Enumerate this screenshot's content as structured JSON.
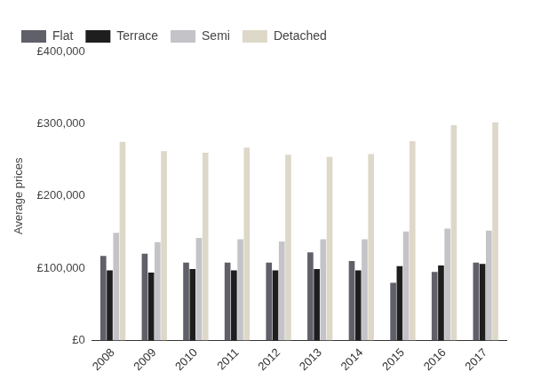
{
  "chart_data": {
    "type": "bar",
    "y_label": "Average prices",
    "categories": [
      "2008",
      "2009",
      "2010",
      "2011",
      "2012",
      "2013",
      "2014",
      "2015",
      "2016",
      "2017"
    ],
    "series": [
      {
        "name": "Flat",
        "color": "#5f6068",
        "values": [
          117000,
          120000,
          108000,
          108000,
          108000,
          122000,
          110000,
          80000,
          95000,
          108000
        ]
      },
      {
        "name": "Terrace",
        "color": "#1e1e1e",
        "values": [
          97000,
          94000,
          99000,
          97000,
          97000,
          99000,
          97000,
          103000,
          104000,
          106000
        ]
      },
      {
        "name": "Semi",
        "color": "#c4c4c8",
        "values": [
          149000,
          136000,
          142000,
          140000,
          137000,
          140000,
          140000,
          151000,
          155000,
          152000
        ]
      },
      {
        "name": "Detached",
        "color": "#ddd8c8",
        "values": [
          275000,
          262000,
          260000,
          267000,
          257000,
          254000,
          258000,
          276000,
          298000,
          302000
        ]
      }
    ],
    "ylim": [
      0,
      400000
    ],
    "yticks": [
      {
        "value": 0,
        "label": "£0"
      },
      {
        "value": 100000,
        "label": "£100,000"
      },
      {
        "value": 200000,
        "label": "£200,000"
      },
      {
        "value": 300000,
        "label": "£300,000"
      },
      {
        "value": 400000,
        "label": "£400,000"
      }
    ],
    "grid": false,
    "legend": "top"
  }
}
